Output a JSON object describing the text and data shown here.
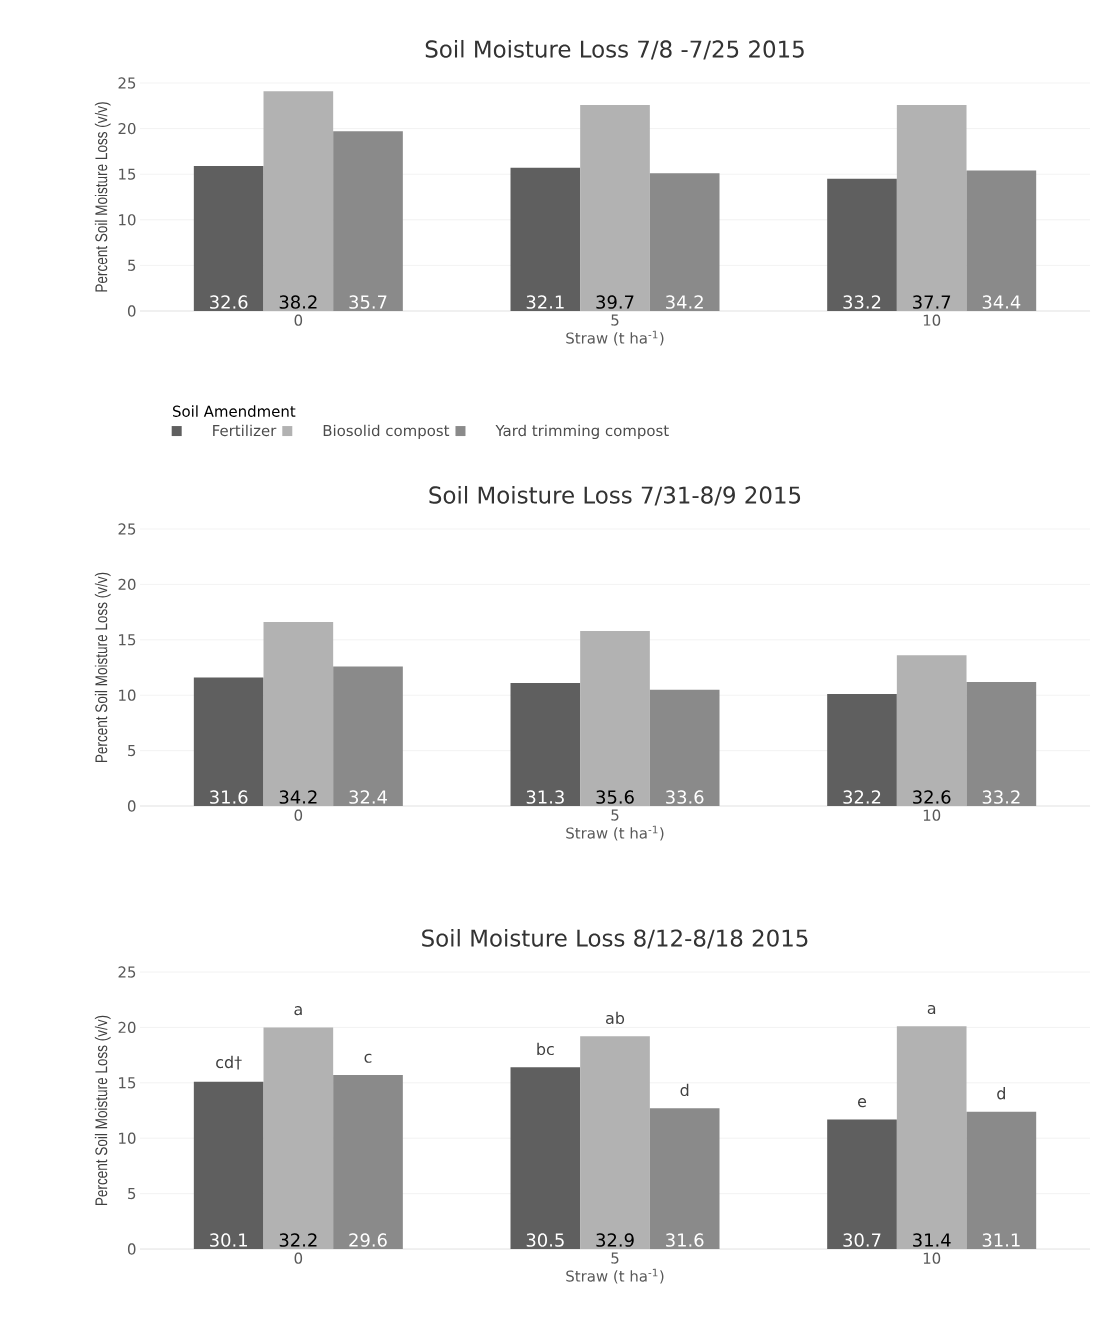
{
  "chart_data": [
    {
      "type": "bar",
      "title": "Soil Moisture Loss 7/8 -7/25 2015",
      "xlabel": "Straw (t ha$^{-1}$)",
      "ylabel": "Percent Soil Moisture Loss (v/v)",
      "legend_title": "Soil Amendment",
      "legend": "bottom",
      "grid": "y",
      "categories": [
        "0",
        "5",
        "10"
      ],
      "ylim": [
        0,
        25
      ],
      "yticks": [
        0,
        5,
        10,
        15,
        20,
        25
      ],
      "series": [
        {
          "name": "Fertilizer",
          "color": "#5f5f5f",
          "values": [
            15.9,
            15.7,
            14.5
          ]
        },
        {
          "name": "Biosolid compost",
          "color": "#b2b2b2",
          "values": [
            24.1,
            22.6,
            22.6
          ]
        },
        {
          "name": "Yard trimming compost",
          "color": "#8a8a8a",
          "values": [
            19.7,
            15.1,
            15.4
          ]
        }
      ],
      "annotations": [
        "32.6",
        "38.2",
        "35.7",
        "32.1",
        "39.7",
        "34.2",
        "33.2",
        "37.7",
        "34.4"
      ]
    },
    {
      "type": "bar",
      "title": "Soil Moisture Loss 7/31-8/9 2015",
      "xlabel": "Straw (t ha$^{-1}$)",
      "ylabel": "Percent Soil Moisture Loss (v/v)",
      "grid": "y",
      "categories": [
        "0",
        "5",
        "10"
      ],
      "ylim": [
        0,
        25
      ],
      "yticks": [
        0,
        5,
        10,
        15,
        20,
        25
      ],
      "series": [
        {
          "color": "#5f5f5f",
          "values": [
            11.6,
            11.1,
            10.1
          ]
        },
        {
          "color": "#b2b2b2",
          "values": [
            16.6,
            15.8,
            13.6
          ]
        },
        {
          "color": "#8a8a8a",
          "values": [
            12.6,
            10.5,
            11.2
          ]
        }
      ],
      "annotations": [
        "31.6",
        "34.2",
        "32.4",
        "31.3",
        "35.6",
        "33.6",
        "32.2",
        "32.6",
        "33.2"
      ]
    },
    {
      "type": "bar",
      "title": "Soil Moisture Loss 8/12-8/18 2015",
      "xlabel": "Straw (t ha$^{-1}$)",
      "ylabel": "Percent Soil Moisture Loss (v/v)",
      "grid": "y",
      "categories": [
        "0",
        "5",
        "10"
      ],
      "ylim": [
        0,
        25
      ],
      "yticks": [
        0,
        5,
        10,
        15,
        20,
        25
      ],
      "series": [
        {
          "color": "#5f5f5f",
          "values": [
            15.1,
            16.4,
            11.7
          ]
        },
        {
          "color": "#b2b2b2",
          "values": [
            20.0,
            19.2,
            20.1
          ]
        },
        {
          "color": "#8a8a8a",
          "values": [
            15.7,
            12.7,
            12.4
          ]
        }
      ],
      "annotations": [
        "30.1",
        "32.2",
        "29.6",
        "30.5",
        "32.9",
        "31.6",
        "30.7",
        "31.4",
        "31.1",
        "cd†",
        "a",
        "c",
        "bc",
        "ab",
        "d",
        "e",
        "a",
        "d"
      ]
    }
  ]
}
